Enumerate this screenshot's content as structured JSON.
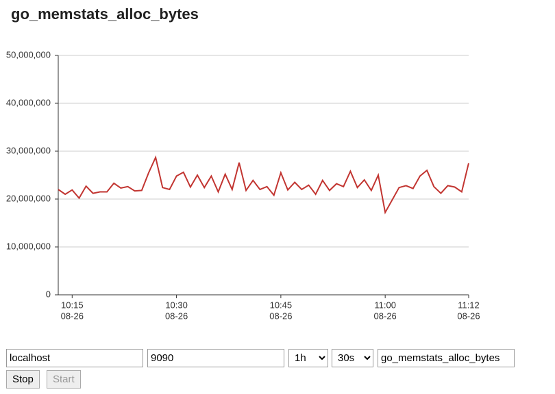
{
  "chart_data": {
    "type": "line",
    "title": "go_memstats_alloc_bytes",
    "x": [
      613,
      614,
      615,
      616,
      617,
      618,
      619,
      620,
      621,
      622,
      623,
      624,
      625,
      626,
      627,
      628,
      629,
      630,
      631,
      632,
      633,
      634,
      635,
      636,
      637,
      638,
      639,
      640,
      641,
      642,
      643,
      644,
      645,
      646,
      647,
      648,
      649,
      650,
      651,
      652,
      653,
      654,
      655,
      656,
      657,
      658,
      659,
      660,
      661,
      662,
      663,
      664,
      665,
      666,
      667,
      668,
      669,
      670,
      671,
      672
    ],
    "series": [
      {
        "color": "#c23531",
        "values": [
          22000000,
          21000000,
          21900000,
          20200000,
          22700000,
          21200000,
          21500000,
          21500000,
          23300000,
          22300000,
          22600000,
          21700000,
          21800000,
          25500000,
          28700000,
          22400000,
          22000000,
          24800000,
          25600000,
          22500000,
          25000000,
          22400000,
          24800000,
          21500000,
          25200000,
          22000000,
          27600000,
          21800000,
          23900000,
          22000000,
          22600000,
          20800000,
          25500000,
          21900000,
          23500000,
          22000000,
          22900000,
          21000000,
          23900000,
          21800000,
          23200000,
          22600000,
          25800000,
          22400000,
          24000000,
          21800000,
          25000000,
          17200000,
          19800000,
          22400000,
          22800000,
          22200000,
          24800000,
          26000000,
          22600000,
          21200000,
          22800000,
          22500000,
          21500000,
          27500000
        ]
      }
    ],
    "xlim": [
      613,
      672
    ],
    "xticks": [
      {
        "value": 615,
        "label": "10:15",
        "date": "08-26"
      },
      {
        "value": 630,
        "label": "10:30",
        "date": "08-26"
      },
      {
        "value": 645,
        "label": "10:45",
        "date": "08-26"
      },
      {
        "value": 660,
        "label": "11:00",
        "date": "08-26"
      },
      {
        "value": 672,
        "label": "11:12",
        "date": "08-26"
      }
    ],
    "ylim": [
      0,
      50000000
    ],
    "yticks": [
      0,
      {
        "value": 10000000,
        "label": "10,000,000"
      },
      {
        "value": 20000000,
        "label": "20,000,000"
      },
      {
        "value": 30000000,
        "label": "30,000,000"
      },
      {
        "value": 40000000,
        "label": "40,000,000"
      },
      {
        "value": 50000000,
        "label": "50,000,000"
      }
    ],
    "grid": true
  },
  "controls": {
    "host": "localhost",
    "port": "9090",
    "range": "1h",
    "step": "30s",
    "metric": "go_memstats_alloc_bytes",
    "stop": "Stop",
    "start": "Start"
  }
}
